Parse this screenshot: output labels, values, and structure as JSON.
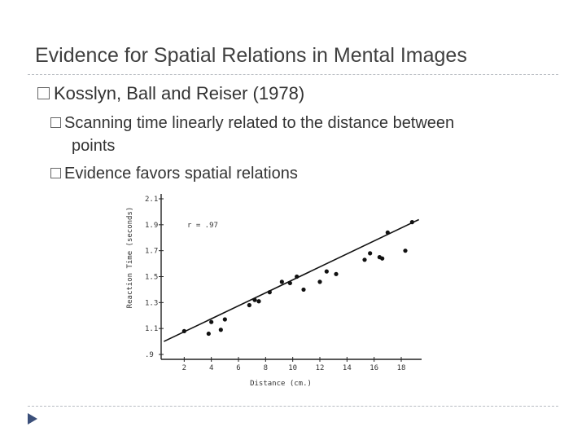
{
  "slide": {
    "title": "Evidence for Spatial Relations in Mental Images",
    "bullet1": "Kosslyn, Ball and Reiser (1978)",
    "sub1_line1": "Scanning time linearly related to the distance between",
    "sub1_line2": "points",
    "sub2": "Evidence favors spatial relations",
    "bullet_icon": "box-bullet-icon",
    "nav_icon": "triangle-arrow-icon",
    "accent": "#3b4f7a"
  },
  "chart_data": {
    "type": "scatter",
    "ylabel": "Reaction Time (seconds)",
    "xlabel": "Distance (cm.)",
    "annotation": "r = .97",
    "xlim": [
      0.3,
      19.5
    ],
    "ylim": [
      0.9,
      2.1
    ],
    "x_ticks": [
      2,
      4,
      6,
      8,
      10,
      12,
      14,
      16,
      18
    ],
    "y_ticks": [
      0.9,
      1.1,
      1.3,
      1.5,
      1.7,
      1.9,
      2.1
    ],
    "y_tick_labels": [
      ".9",
      "1.1",
      "1.3",
      "1.5",
      "1.7",
      "1.9",
      "2.1"
    ],
    "points": [
      {
        "x": 2.0,
        "y": 1.08
      },
      {
        "x": 3.8,
        "y": 1.06
      },
      {
        "x": 4.0,
        "y": 1.15
      },
      {
        "x": 4.7,
        "y": 1.09
      },
      {
        "x": 5.0,
        "y": 1.17
      },
      {
        "x": 6.8,
        "y": 1.28
      },
      {
        "x": 7.2,
        "y": 1.32
      },
      {
        "x": 7.5,
        "y": 1.31
      },
      {
        "x": 8.3,
        "y": 1.38
      },
      {
        "x": 9.2,
        "y": 1.46
      },
      {
        "x": 9.8,
        "y": 1.45
      },
      {
        "x": 10.3,
        "y": 1.5
      },
      {
        "x": 10.8,
        "y": 1.4
      },
      {
        "x": 12.0,
        "y": 1.46
      },
      {
        "x": 12.5,
        "y": 1.54
      },
      {
        "x": 13.2,
        "y": 1.52
      },
      {
        "x": 15.3,
        "y": 1.63
      },
      {
        "x": 15.7,
        "y": 1.68
      },
      {
        "x": 16.4,
        "y": 1.65
      },
      {
        "x": 16.6,
        "y": 1.64
      },
      {
        "x": 17.0,
        "y": 1.84
      },
      {
        "x": 18.3,
        "y": 1.7
      },
      {
        "x": 18.8,
        "y": 1.92
      }
    ],
    "fit_line": [
      {
        "x": 0.5,
        "y": 1.0
      },
      {
        "x": 19.3,
        "y": 1.94
      }
    ],
    "grid": false,
    "legend": "none"
  }
}
